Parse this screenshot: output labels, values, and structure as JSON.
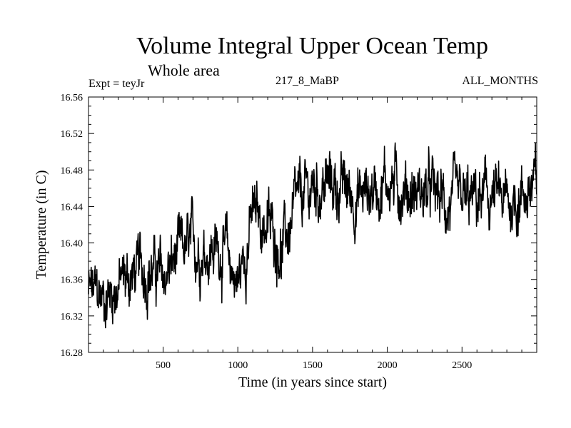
{
  "chart_data": {
    "type": "line",
    "title": "Volume Integral Upper Ocean Temp",
    "subtitle": "Whole area",
    "experiment_label": "Expt = teyJr",
    "run_label": "217_8_MaBP",
    "months_label": "ALL_MONTHS",
    "xlabel": "Time (in years since start)",
    "ylabel": "Temperature (in C)",
    "xlim": [
      1,
      3000
    ],
    "ylim": [
      16.28,
      16.56
    ],
    "x_ticks": [
      500,
      1000,
      1500,
      2000,
      2500
    ],
    "x_tick_labels": [
      "500",
      "1000",
      "1500",
      "2000",
      "2500"
    ],
    "y_ticks": [
      16.28,
      16.32,
      16.36,
      16.4,
      16.44,
      16.48,
      16.52,
      16.56
    ],
    "y_tick_labels": [
      "16.28",
      "16.32",
      "16.36",
      "16.40",
      "16.44",
      "16.48",
      "16.52",
      "16.56"
    ],
    "series": [
      {
        "name": "Volume integral upper ocean temperature",
        "color": "#000000",
        "x": [
          1,
          100,
          200,
          300,
          400,
          500,
          600,
          700,
          800,
          900,
          1000,
          1100,
          1200,
          1300,
          1400,
          1500,
          1600,
          1700,
          1800,
          1900,
          2000,
          2100,
          2200,
          2300,
          2400,
          2500,
          2600,
          2700,
          2800,
          2900,
          3000
        ],
        "values": [
          16.345,
          16.34,
          16.355,
          16.365,
          16.375,
          16.36,
          16.385,
          16.395,
          16.395,
          16.395,
          16.355,
          16.43,
          16.42,
          16.395,
          16.44,
          16.46,
          16.465,
          16.46,
          16.45,
          16.46,
          16.47,
          16.46,
          16.455,
          16.455,
          16.44,
          16.44,
          16.445,
          16.45,
          16.44,
          16.455,
          16.46
        ],
        "fluctuation_amplitude": 0.035,
        "min": 16.307,
        "max": 16.528
      }
    ]
  }
}
